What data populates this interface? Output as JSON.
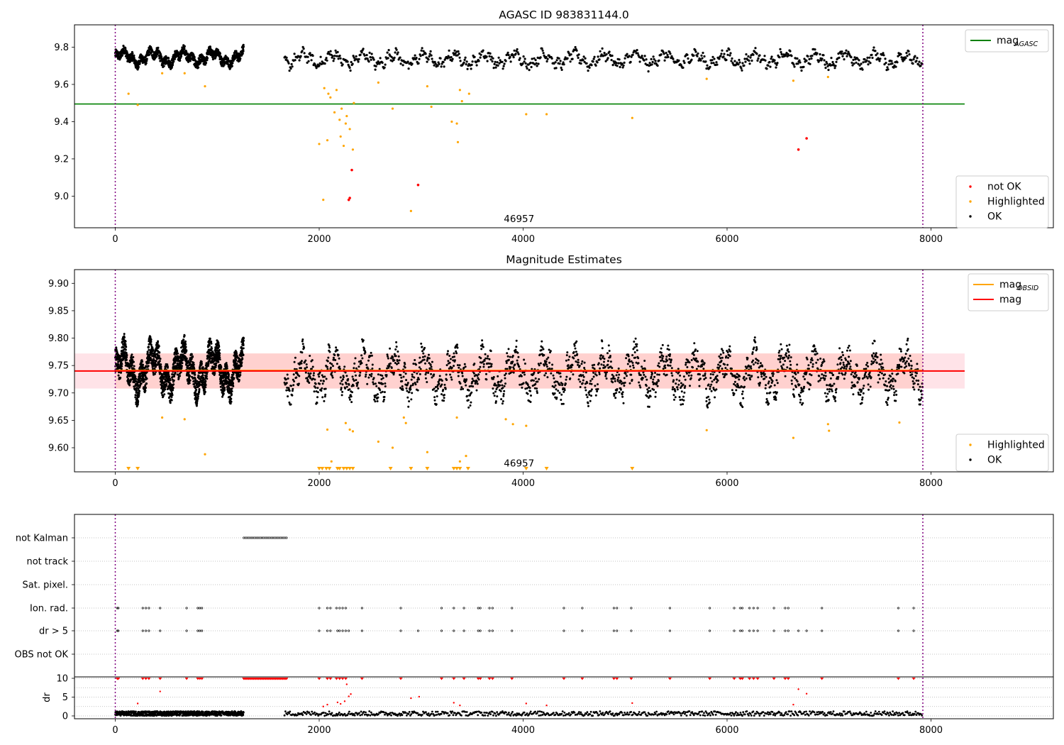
{
  "chart_data": [
    {
      "type": "scatter",
      "title": "AGASC ID 983831144.0",
      "x_ticks": [
        0,
        2000,
        4000,
        6000,
        8000
      ],
      "y_ticks": [
        "9.0",
        "9.2",
        "9.4",
        "9.6",
        "9.8"
      ],
      "xlim": [
        -400,
        9200
      ],
      "ylim": [
        8.83,
        9.92
      ],
      "obs_boundaries": [
        0,
        7920
      ],
      "reference_lines": [
        {
          "name": "mag_AGASC",
          "value": 9.495,
          "color": "#008000",
          "x_range": [
            -400,
            8330
          ]
        }
      ],
      "annotation": {
        "text": "46957",
        "x": 3960,
        "y": 8.86
      },
      "ok_series": {
        "name": "OK",
        "color": "#000000",
        "segments": [
          {
            "x_range": [
              0,
              1260
            ],
            "center": 9.745,
            "amp": 0.05
          },
          {
            "x_range": [
              1660,
              7920
            ],
            "center": 9.735,
            "amp": 0.05
          }
        ]
      },
      "highlighted_series": {
        "name": "Highlighted",
        "color": "#ffa500",
        "x": [
          130,
          220,
          460,
          680,
          880,
          2000,
          2040,
          2050,
          2080,
          2090,
          2110,
          2150,
          2170,
          2200,
          2210,
          2220,
          2240,
          2260,
          2270,
          2300,
          2330,
          2340,
          2580,
          2720,
          2900,
          3060,
          3100,
          3300,
          3350,
          3360,
          3380,
          3400,
          3470,
          4030,
          4230,
          5070,
          5800,
          6650,
          6990
        ],
        "y": [
          9.55,
          9.49,
          9.66,
          9.66,
          9.59,
          9.28,
          8.98,
          9.58,
          9.3,
          9.55,
          9.53,
          9.45,
          9.57,
          9.41,
          9.32,
          9.47,
          9.27,
          9.39,
          9.43,
          9.36,
          9.25,
          9.5,
          9.61,
          9.47,
          8.92,
          9.59,
          9.48,
          9.4,
          9.39,
          9.29,
          9.57,
          9.51,
          9.55,
          9.44,
          9.44,
          9.42,
          9.63,
          9.62,
          9.64
        ]
      },
      "not_ok_series": {
        "name": "not OK",
        "color": "#ff0000",
        "x": [
          2290,
          2300,
          2320,
          2970,
          6700,
          6780
        ],
        "y": [
          8.98,
          8.99,
          9.14,
          9.06,
          9.25,
          9.31
        ]
      },
      "legends": [
        {
          "position": "upper-right",
          "entries": [
            {
              "kind": "line",
              "color": "#008000",
              "label": "mag",
              "sub": "AGASC"
            }
          ]
        },
        {
          "position": "lower-right",
          "entries": [
            {
              "kind": "dot",
              "color": "#ff0000",
              "label": "not OK"
            },
            {
              "kind": "dot",
              "color": "#ffa500",
              "label": "Highlighted"
            },
            {
              "kind": "dot",
              "color": "#000000",
              "label": "OK"
            }
          ]
        }
      ]
    },
    {
      "type": "scatter",
      "title": "Magnitude Estimates",
      "x_ticks": [
        0,
        2000,
        4000,
        6000,
        8000
      ],
      "y_ticks": [
        "9.60",
        "9.65",
        "9.70",
        "9.75",
        "9.80",
        "9.85",
        "9.90"
      ],
      "xlim": [
        -400,
        9200
      ],
      "ylim": [
        9.556,
        9.925
      ],
      "obs_boundaries": [
        0,
        7920
      ],
      "reference_lines": [
        {
          "name": "mag_OBSID",
          "value": 9.741,
          "color": "#ffa500",
          "x_range": [
            0,
            7920
          ]
        },
        {
          "name": "mag",
          "value": 9.74,
          "color": "#ff0000",
          "x_range": [
            -400,
            8330
          ]
        }
      ],
      "bands": [
        {
          "color": "#ffa07a",
          "opacity": 0.35,
          "range": [
            9.708,
            9.772
          ],
          "x_range": [
            0,
            7920
          ]
        },
        {
          "color": "#ffc0cb",
          "opacity": 0.45,
          "range": [
            9.708,
            9.772
          ],
          "x_range": [
            -400,
            8330
          ]
        }
      ],
      "annotation": {
        "text": "46957",
        "x": 3960,
        "y": 9.566
      },
      "ok_series": {
        "name": "OK",
        "color": "#000000",
        "segments": [
          {
            "x_range": [
              0,
              1260
            ],
            "center": 9.742,
            "amp": 0.05
          },
          {
            "x_range": [
              1660,
              7920
            ],
            "center": 9.735,
            "amp": 0.05
          }
        ]
      },
      "highlighted_series": {
        "name": "Highlighted",
        "color": "#ffa500",
        "x": [
          460,
          680,
          880,
          2080,
          2120,
          2260,
          2300,
          2330,
          2580,
          2720,
          2830,
          2850,
          3060,
          3350,
          3380,
          3440,
          3830,
          3900,
          4030,
          5800,
          6650,
          6990,
          7000,
          7690
        ],
        "y": [
          9.655,
          9.652,
          9.588,
          9.633,
          9.575,
          9.645,
          9.633,
          9.63,
          9.611,
          9.6,
          9.655,
          9.645,
          9.592,
          9.655,
          9.575,
          9.585,
          9.652,
          9.643,
          9.64,
          9.632,
          9.618,
          9.643,
          9.631,
          9.646
        ]
      },
      "clipped_markers": {
        "color": "#ffa500",
        "x": [
          130,
          220,
          2000,
          2030,
          2070,
          2100,
          2180,
          2200,
          2240,
          2270,
          2300,
          2330,
          2700,
          2900,
          3060,
          3320,
          3350,
          3380,
          3460,
          4030,
          4230,
          5070
        ]
      },
      "legends": [
        {
          "position": "upper-right",
          "entries": [
            {
              "kind": "line",
              "color": "#ffa500",
              "label": "mag",
              "sub": "OBSID"
            },
            {
              "kind": "line",
              "color": "#ff0000",
              "label": "mag",
              "sub": ""
            }
          ]
        },
        {
          "position": "lower-right",
          "entries": [
            {
              "kind": "dot",
              "color": "#ffa500",
              "label": "Highlighted"
            },
            {
              "kind": "dot",
              "color": "#000000",
              "label": "OK"
            }
          ]
        }
      ]
    },
    {
      "type": "scatter",
      "title": "",
      "x_ticks": [
        0,
        2000,
        4000,
        6000,
        8000
      ],
      "xlim": [
        -400,
        9200
      ],
      "obs_boundaries": [
        0,
        7920
      ],
      "flag_categories": [
        "not Kalman",
        "not track",
        "Sat. pixel.",
        "Ion. rad.",
        "dr > 5",
        "OBS not OK"
      ],
      "not_kalman_range": [
        1260,
        1680
      ],
      "ion_rad_x": [
        20,
        30,
        270,
        300,
        330,
        440,
        700,
        810,
        830,
        850,
        2000,
        2080,
        2110,
        2170,
        2200,
        2230,
        2260,
        2420,
        2800,
        3200,
        3320,
        3420,
        3560,
        3580,
        3670,
        3700,
        3890,
        4400,
        4580,
        4890,
        4920,
        5060,
        5440,
        5830,
        6070,
        6130,
        6150,
        6220,
        6260,
        6300,
        6460,
        6570,
        6600,
        6930,
        7680,
        7830
      ],
      "dr_gt5_x": [
        20,
        30,
        270,
        300,
        330,
        440,
        700,
        810,
        830,
        850,
        2000,
        2080,
        2110,
        2180,
        2200,
        2230,
        2260,
        2290,
        2420,
        2800,
        2970,
        3200,
        3320,
        3420,
        3560,
        3580,
        3670,
        3700,
        3890,
        4400,
        4580,
        4890,
        4920,
        5060,
        5440,
        5830,
        6070,
        6130,
        6150,
        6220,
        6260,
        6300,
        6460,
        6570,
        6600,
        6700,
        6780,
        6930,
        7680,
        7830
      ],
      "dr_panel": {
        "ylabel": "dr",
        "y_ticks": [
          "0",
          "5",
          "10"
        ],
        "ylim": [
          -0.5,
          10.5
        ],
        "ok_color": "#000000",
        "flag_color": "#ff0000",
        "ok_segments": [
          {
            "x_range": [
              0,
              1260
            ]
          },
          {
            "x_range": [
              1660,
              7920
            ]
          }
        ],
        "clipped_x": [
          20,
          30,
          270,
          300,
          330,
          440,
          700,
          810,
          830,
          850,
          2000,
          2080,
          2110,
          2170,
          2200,
          2230,
          2260,
          2420,
          2800,
          3200,
          3320,
          3420,
          3560,
          3580,
          3670,
          3700,
          3890,
          4400,
          4580,
          4890,
          4920,
          5060,
          5440,
          5830,
          6070,
          6130,
          6150,
          6220,
          6260,
          6300,
          6460,
          6570,
          6600,
          6930,
          7680,
          7830
        ],
        "clipped_range": [
          1260,
          1680
        ],
        "mid_points_x": [
          220,
          440,
          2040,
          2080,
          2180,
          2210,
          2250,
          2270,
          2290,
          2310,
          2900,
          2980,
          3320,
          3380,
          4030,
          4230,
          5070,
          6650,
          6700,
          6780
        ],
        "mid_points_y": [
          3.3,
          6.5,
          2.5,
          3.0,
          3.6,
          3.2,
          3.9,
          8.4,
          5.2,
          5.8,
          4.7,
          5.1,
          3.5,
          2.8,
          3.3,
          2.8,
          3.4,
          3.0,
          7.1,
          5.9
        ]
      }
    }
  ]
}
